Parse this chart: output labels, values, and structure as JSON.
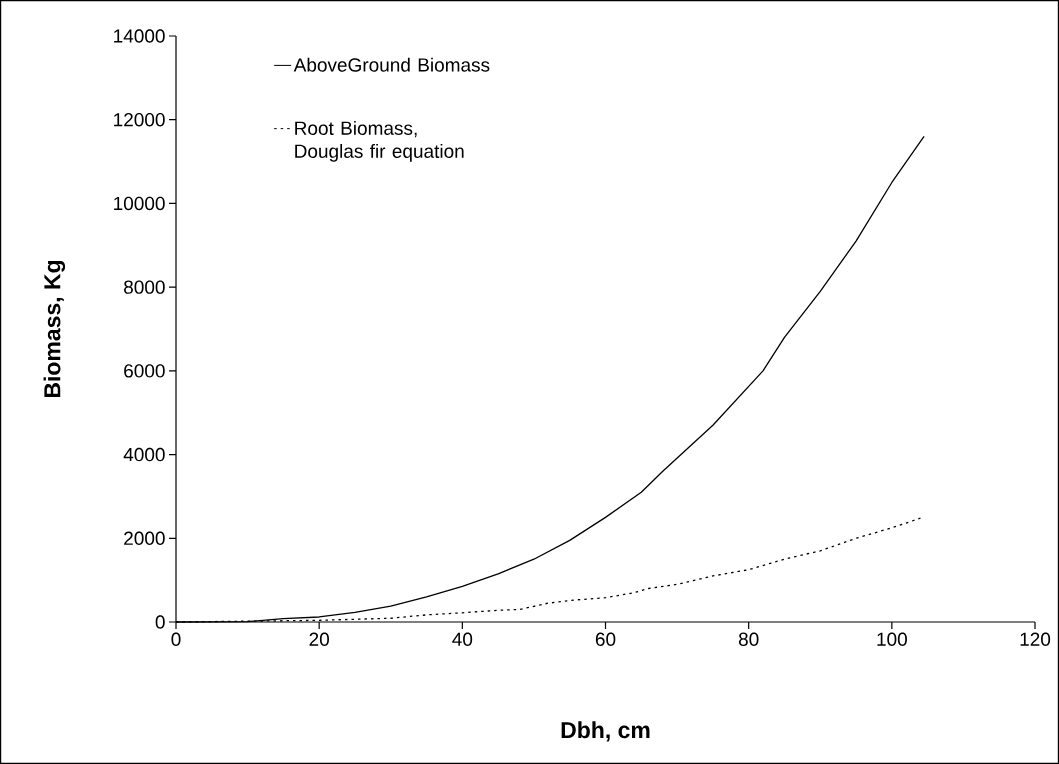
{
  "chart_data": {
    "type": "line",
    "xlabel": "Dbh, cm",
    "ylabel": "Biomass, Kg",
    "xlim": [
      0,
      120
    ],
    "xticks": [
      0,
      20,
      40,
      60,
      80,
      100,
      120
    ],
    "ylim": [
      0,
      14000
    ],
    "yticks": [
      0,
      2000,
      4000,
      6000,
      8000,
      10000,
      12000,
      14000
    ],
    "legend": "top left",
    "series": [
      {
        "name": "AboveGround Biomass",
        "color": "#000000",
        "line_style": "solid",
        "x": [
          0,
          10,
          15,
          20,
          25,
          30,
          35,
          40,
          45,
          50,
          55,
          60,
          65,
          68,
          75,
          82,
          85,
          90,
          95,
          100,
          104.5
        ],
        "values": [
          0,
          10,
          80,
          120,
          230,
          380,
          600,
          850,
          1150,
          1500,
          1950,
          2500,
          3100,
          3600,
          4700,
          6000,
          6800,
          7900,
          9100,
          10500,
          11600
        ]
      },
      {
        "name": "Root Biomass, Douglas fir equation",
        "color": "#000000",
        "line_style": "dotted",
        "x": [
          0,
          20,
          30,
          35,
          40,
          45,
          48,
          52,
          56,
          60,
          64,
          66,
          70,
          75,
          80,
          85,
          90,
          95,
          100,
          104
        ],
        "values": [
          0,
          40,
          90,
          170,
          220,
          280,
          300,
          450,
          530,
          580,
          700,
          800,
          900,
          1100,
          1250,
          1500,
          1700,
          2000,
          2250,
          2480
        ]
      }
    ]
  }
}
